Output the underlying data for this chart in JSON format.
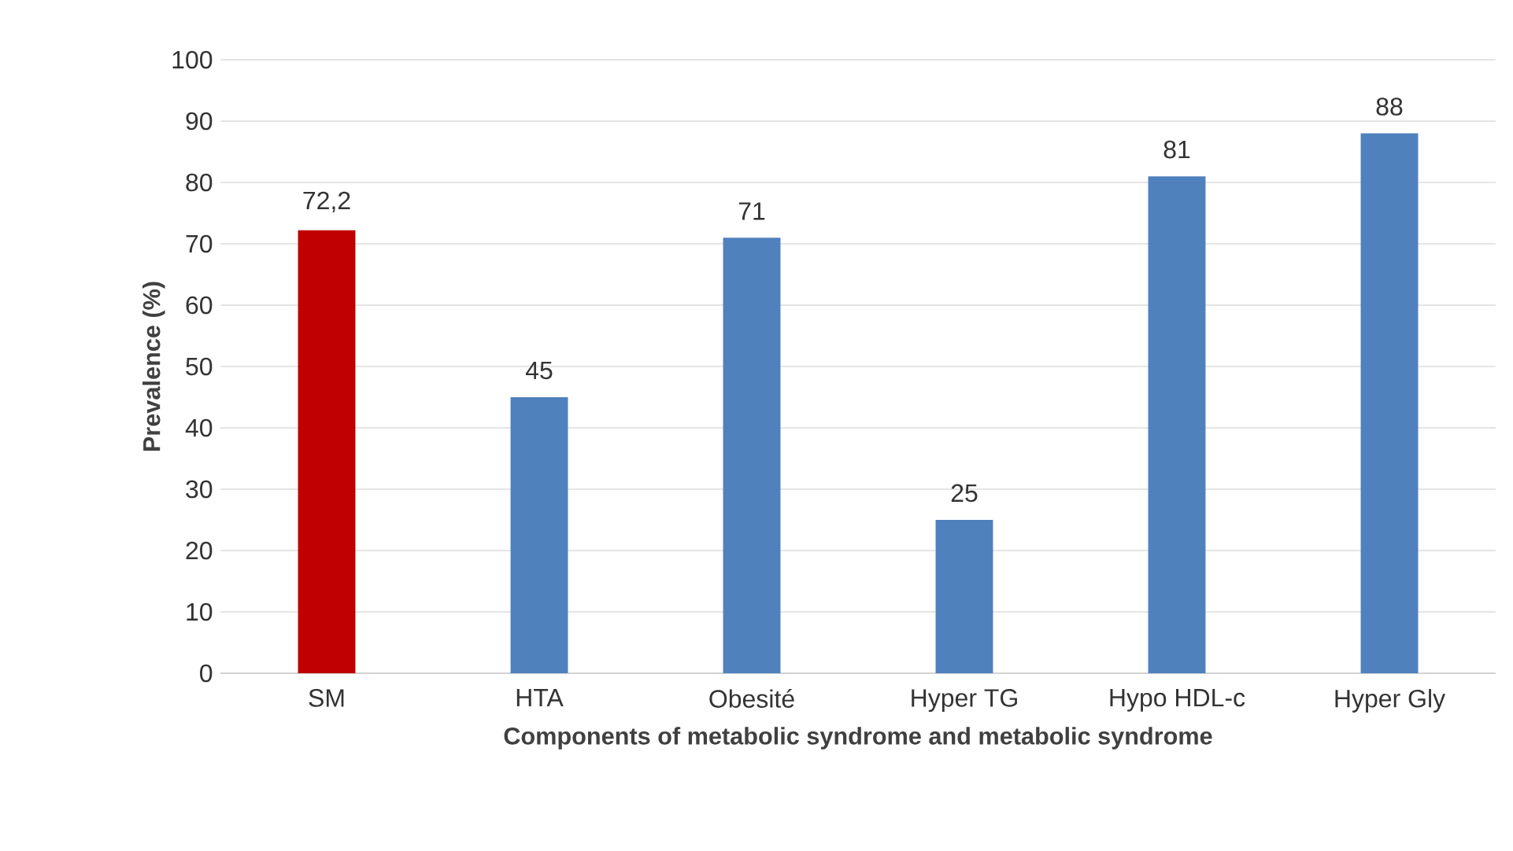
{
  "chart_data": {
    "type": "bar",
    "xlabel": "Components of metabolic syndrome and metabolic syndrome",
    "ylabel": "Prevalence (%)",
    "categories": [
      "SM",
      "HTA",
      "Obesité",
      "Hyper TG",
      "Hypo HDL-c",
      "Hyper Gly"
    ],
    "values": [
      72.2,
      45,
      71,
      25,
      81,
      88
    ],
    "colors": [
      "#c00000",
      "#4f81bd",
      "#4f81bd",
      "#4f81bd",
      "#4f81bd",
      "#4f81bd"
    ],
    "value_labels": [
      "72,2",
      "45",
      "71",
      "25",
      "81",
      "88"
    ],
    "ylim": [
      0,
      100
    ],
    "yticks": [
      0,
      10,
      20,
      30,
      40,
      50,
      60,
      70,
      80,
      90,
      100
    ],
    "grid": "y"
  }
}
